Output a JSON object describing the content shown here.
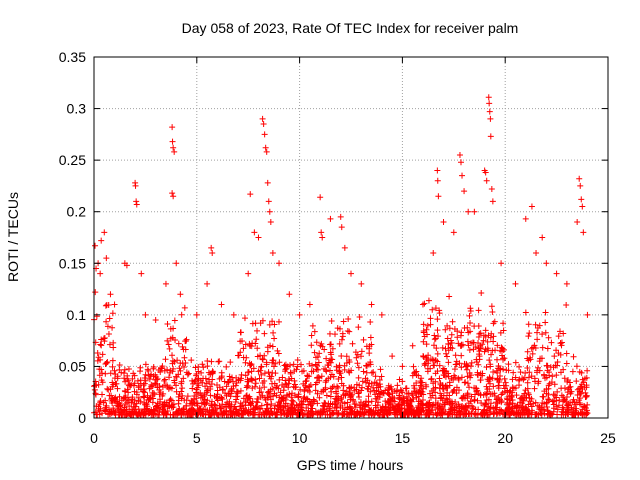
{
  "chart_data": {
    "type": "scatter",
    "title": "Day 058 of 2023, Rate Of TEC Index for receiver palm",
    "xlabel": "GPS time / hours",
    "ylabel": "ROTI / TECUs",
    "xlim": [
      0,
      25
    ],
    "ylim": [
      0,
      0.35
    ],
    "x_ticks": [
      0,
      5,
      10,
      15,
      20,
      25
    ],
    "y_ticks": [
      0,
      0.05,
      0.1,
      0.15,
      0.2,
      0.25,
      0.3,
      0.35
    ],
    "x_tick_labels": [
      "0",
      "5",
      "10",
      "15",
      "20",
      "25"
    ],
    "y_tick_labels": [
      "0",
      "0.05",
      "0.1",
      "0.15",
      "0.2",
      "0.25",
      "0.3",
      "0.35"
    ],
    "grid": true,
    "marker": "+",
    "marker_color": "#ff0000",
    "series": [
      {
        "values": [
          [
            0.05,
            0.167
          ],
          [
            0.1,
            0.145
          ],
          [
            0.2,
            0.15
          ],
          [
            0.3,
            0.14
          ],
          [
            0.35,
            0.172
          ],
          [
            0.5,
            0.18
          ],
          [
            0.6,
            0.155
          ],
          [
            0.8,
            0.12
          ],
          [
            1.0,
            0.11
          ],
          [
            1.5,
            0.15
          ],
          [
            1.6,
            0.148
          ],
          [
            2.0,
            0.228
          ],
          [
            2.02,
            0.225
          ],
          [
            2.05,
            0.21
          ],
          [
            2.08,
            0.207
          ],
          [
            2.3,
            0.14
          ],
          [
            2.5,
            0.1
          ],
          [
            3.0,
            0.095
          ],
          [
            3.5,
            0.13
          ],
          [
            3.8,
            0.282
          ],
          [
            3.82,
            0.268
          ],
          [
            3.85,
            0.262
          ],
          [
            3.9,
            0.258
          ],
          [
            3.8,
            0.218
          ],
          [
            3.85,
            0.215
          ],
          [
            4.0,
            0.15
          ],
          [
            4.2,
            0.12
          ],
          [
            5.0,
            0.1
          ],
          [
            5.5,
            0.13
          ],
          [
            5.7,
            0.165
          ],
          [
            5.75,
            0.16
          ],
          [
            6.2,
            0.11
          ],
          [
            6.8,
            0.1
          ],
          [
            7.5,
            0.14
          ],
          [
            7.6,
            0.217
          ],
          [
            7.8,
            0.18
          ],
          [
            8.0,
            0.175
          ],
          [
            8.2,
            0.29
          ],
          [
            8.25,
            0.285
          ],
          [
            8.3,
            0.275
          ],
          [
            8.35,
            0.262
          ],
          [
            8.4,
            0.258
          ],
          [
            8.45,
            0.228
          ],
          [
            8.5,
            0.21
          ],
          [
            8.55,
            0.2
          ],
          [
            8.6,
            0.19
          ],
          [
            8.7,
            0.16
          ],
          [
            9.0,
            0.15
          ],
          [
            9.5,
            0.12
          ],
          [
            10.0,
            0.1
          ],
          [
            10.5,
            0.11
          ],
          [
            11.0,
            0.214
          ],
          [
            11.05,
            0.18
          ],
          [
            11.1,
            0.175
          ],
          [
            11.5,
            0.193
          ],
          [
            12.0,
            0.195
          ],
          [
            12.05,
            0.185
          ],
          [
            12.2,
            0.165
          ],
          [
            12.5,
            0.14
          ],
          [
            13.0,
            0.13
          ],
          [
            13.5,
            0.11
          ],
          [
            14.0,
            0.1
          ],
          [
            14.5,
            0.06
          ],
          [
            15.0,
            0.05
          ],
          [
            15.5,
            0.07
          ],
          [
            16.0,
            0.11
          ],
          [
            16.5,
            0.16
          ],
          [
            16.7,
            0.24
          ],
          [
            16.72,
            0.23
          ],
          [
            16.75,
            0.215
          ],
          [
            17.0,
            0.19
          ],
          [
            17.5,
            0.18
          ],
          [
            17.8,
            0.255
          ],
          [
            17.85,
            0.248
          ],
          [
            17.9,
            0.235
          ],
          [
            18.0,
            0.22
          ],
          [
            18.2,
            0.2
          ],
          [
            18.5,
            0.2
          ],
          [
            19.0,
            0.24
          ],
          [
            19.05,
            0.238
          ],
          [
            19.1,
            0.23
          ],
          [
            19.2,
            0.311
          ],
          [
            19.22,
            0.305
          ],
          [
            19.25,
            0.297
          ],
          [
            19.28,
            0.29
          ],
          [
            19.3,
            0.273
          ],
          [
            19.35,
            0.222
          ],
          [
            19.4,
            0.21
          ],
          [
            19.8,
            0.15
          ],
          [
            20.5,
            0.13
          ],
          [
            21.0,
            0.193
          ],
          [
            21.3,
            0.205
          ],
          [
            21.5,
            0.16
          ],
          [
            21.8,
            0.175
          ],
          [
            22.0,
            0.15
          ],
          [
            22.5,
            0.14
          ],
          [
            23.0,
            0.13
          ],
          [
            23.5,
            0.19
          ],
          [
            23.6,
            0.232
          ],
          [
            23.65,
            0.225
          ],
          [
            23.7,
            0.212
          ],
          [
            23.75,
            0.205
          ],
          [
            23.8,
            0.18
          ],
          [
            24.0,
            0.1
          ]
        ]
      }
    ]
  }
}
